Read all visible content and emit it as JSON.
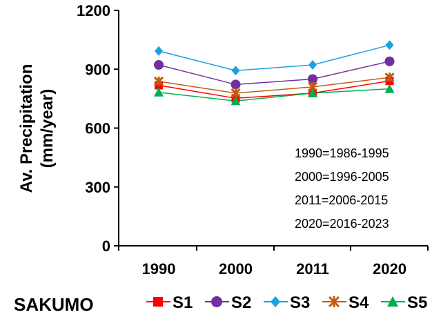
{
  "chart_data": {
    "type": "line",
    "title": "",
    "xlabel": "",
    "ylabel_line1": "Av. Precipitation",
    "ylabel_line2": "(mm/year)",
    "categories": [
      "1990",
      "2000",
      "2011",
      "2020"
    ],
    "ylim": [
      0,
      1200
    ],
    "yticks": [
      0,
      300,
      600,
      900,
      1200
    ],
    "ytick_labels": [
      "0",
      "300",
      "600",
      "900",
      "1200"
    ],
    "grid": false,
    "legend_title": "SAKUMO",
    "legend_position": "bottom",
    "annotations": [
      "1990=1986-1995",
      "2000=1996-2005",
      "2011=2006-2015",
      "2020=2016-2023"
    ],
    "series": [
      {
        "name": "S1",
        "values": [
          818,
          752,
          778,
          840
        ],
        "color": "#ff0000",
        "marker": "square"
      },
      {
        "name": "S2",
        "values": [
          922,
          822,
          850,
          940
        ],
        "color": "#7030a0",
        "marker": "circle"
      },
      {
        "name": "S3",
        "values": [
          993,
          893,
          922,
          1023
        ],
        "color": "#1ba1e2",
        "marker": "diamond"
      },
      {
        "name": "S4",
        "values": [
          838,
          778,
          810,
          858
        ],
        "color": "#c55a11",
        "marker": "star"
      },
      {
        "name": "S5",
        "values": [
          782,
          738,
          778,
          800
        ],
        "color": "#00b050",
        "marker": "triangle"
      }
    ]
  }
}
